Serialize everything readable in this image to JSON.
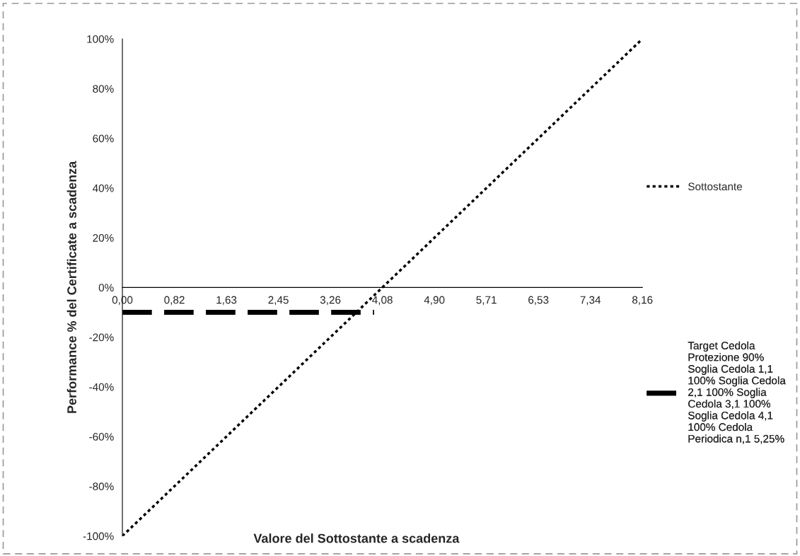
{
  "chart_data": {
    "type": "line",
    "xlabel": "Valore del Sottostante a scadenza",
    "ylabel": "Performance % del Certificate a scadenza",
    "xlim": [
      0,
      8.16
    ],
    "ylim": [
      -100,
      100
    ],
    "xticks": [
      {
        "value": 0,
        "label": "0,00"
      },
      {
        "value": 0.816,
        "label": "0,82"
      },
      {
        "value": 1.632,
        "label": "1,63"
      },
      {
        "value": 2.448,
        "label": "2,45"
      },
      {
        "value": 3.264,
        "label": "3,26"
      },
      {
        "value": 4.08,
        "label": "4,08"
      },
      {
        "value": 4.896,
        "label": "4,90"
      },
      {
        "value": 5.712,
        "label": "5,71"
      },
      {
        "value": 6.528,
        "label": "6,53"
      },
      {
        "value": 7.344,
        "label": "7,34"
      },
      {
        "value": 8.16,
        "label": "8,16"
      }
    ],
    "yticks": [
      {
        "value": -100,
        "label": "-100%"
      },
      {
        "value": -80,
        "label": "-80%"
      },
      {
        "value": -60,
        "label": "-60%"
      },
      {
        "value": -40,
        "label": "-40%"
      },
      {
        "value": -20,
        "label": "-20%"
      },
      {
        "value": 0,
        "label": "0%"
      },
      {
        "value": 20,
        "label": "20%"
      },
      {
        "value": 40,
        "label": "40%"
      },
      {
        "value": 60,
        "label": "60%"
      },
      {
        "value": 80,
        "label": "80%"
      },
      {
        "value": 100,
        "label": "100%"
      }
    ],
    "grid": false,
    "legend": "right",
    "series": [
      {
        "name": "Sottostante",
        "color": "#000000",
        "line_style": "dotted",
        "x": [
          0,
          8.16
        ],
        "values": [
          -100,
          100
        ]
      },
      {
        "name": "Target Cedola\nProtezione 90%\nSoglia Cedola 1,1\n100% Soglia Cedola\n2,1 100% Soglia\nCedola 3,1 100%\nSoglia Cedola 4,1\n100% Cedola\nPeriodica n,1 5,25%",
        "color": "#000000",
        "line_style": "dashed",
        "x": [
          0,
          3.95
        ],
        "values": [
          -10,
          -10
        ]
      }
    ]
  }
}
